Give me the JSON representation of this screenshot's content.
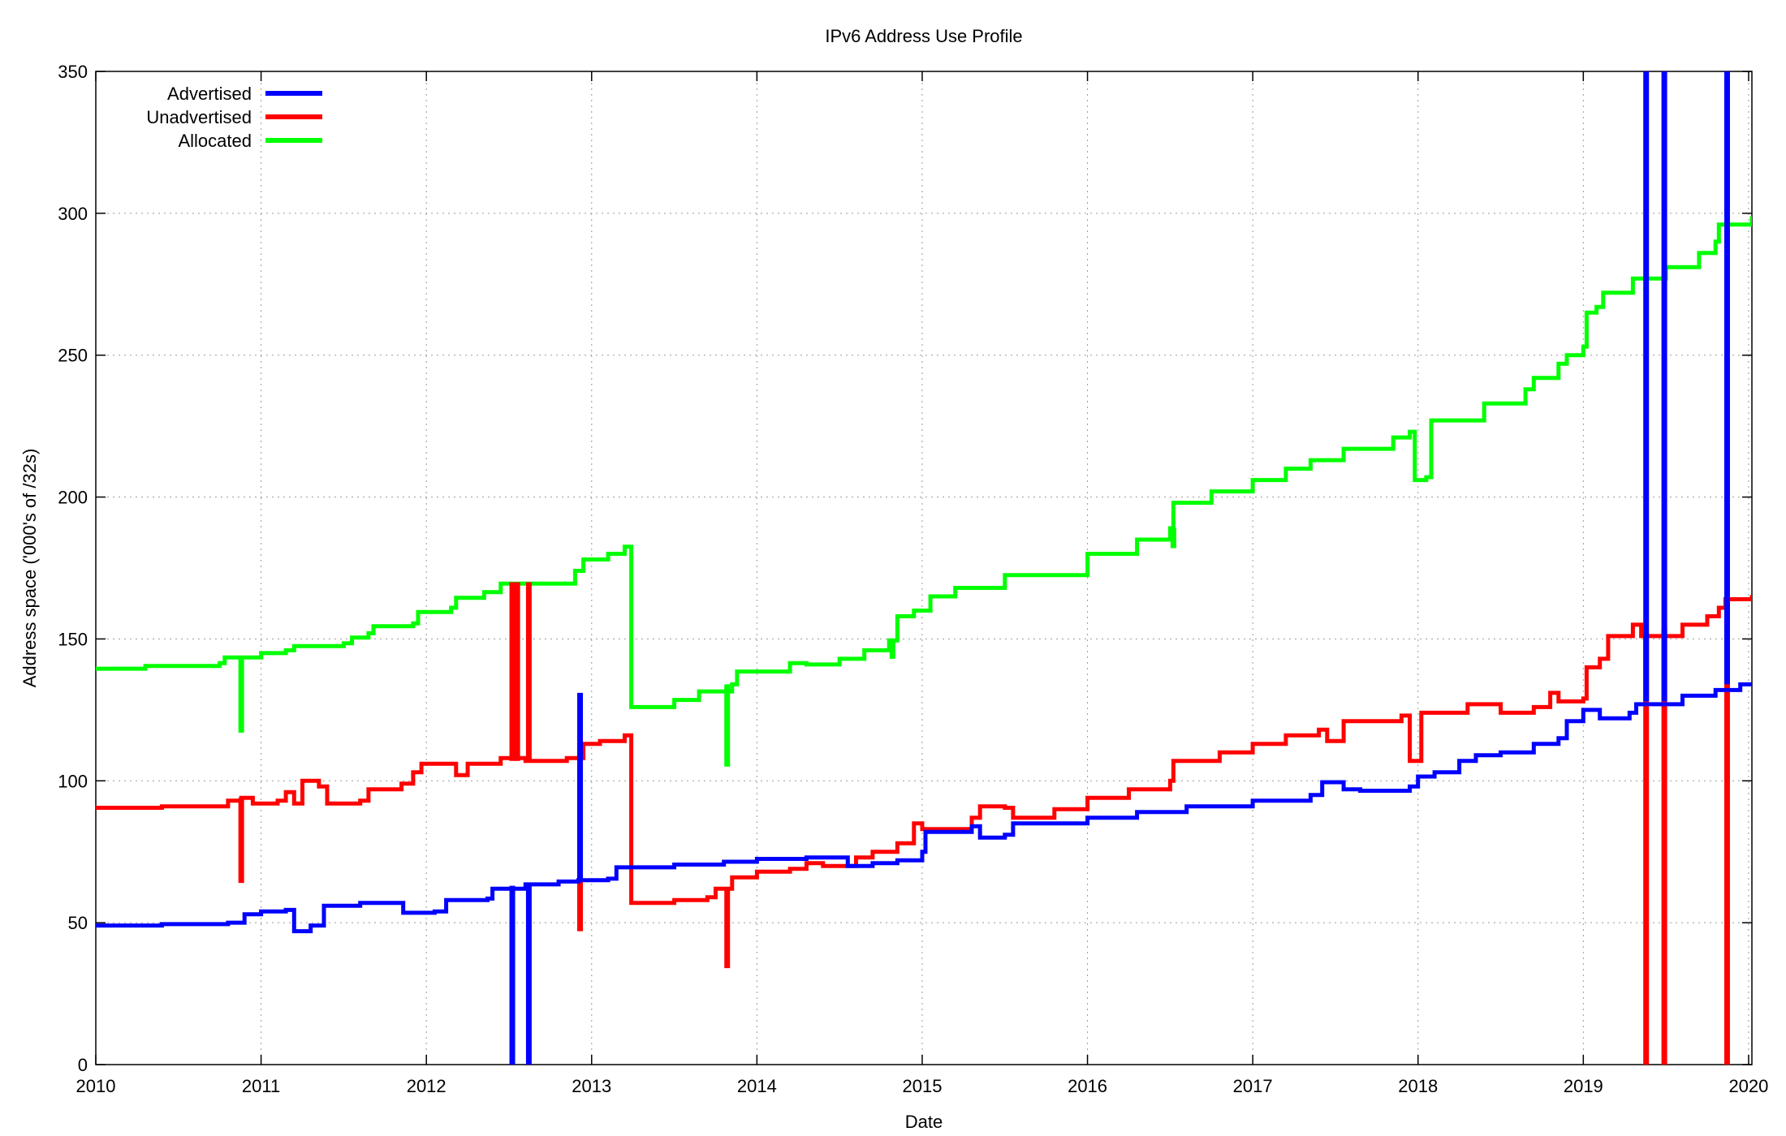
{
  "chart_data": {
    "type": "line",
    "title": "IPv6 Address Use Profile",
    "xlabel": "Date",
    "ylabel": "Address space ('000's of /32s)",
    "xlim": [
      2010,
      2020.02
    ],
    "ylim": [
      0,
      350
    ],
    "x_ticks": [
      "2010",
      "2011",
      "2012",
      "2013",
      "2014",
      "2015",
      "2016",
      "2017",
      "2018",
      "2019",
      "2020"
    ],
    "y_ticks": [
      "0",
      "50",
      "100",
      "150",
      "200",
      "250",
      "300",
      "350"
    ],
    "grid": true,
    "legend_position": "top-left",
    "series": [
      {
        "name": "Advertised",
        "color": "#0000ff",
        "points": [
          [
            2010.0,
            49
          ],
          [
            2010.4,
            49.5
          ],
          [
            2010.8,
            50
          ],
          [
            2010.9,
            53
          ],
          [
            2011.0,
            54
          ],
          [
            2011.15,
            54.5
          ],
          [
            2011.2,
            47
          ],
          [
            2011.3,
            49
          ],
          [
            2011.38,
            56
          ],
          [
            2011.6,
            57
          ],
          [
            2011.82,
            57
          ],
          [
            2011.86,
            53.5
          ],
          [
            2012.05,
            54
          ],
          [
            2012.12,
            58
          ],
          [
            2012.37,
            58.5
          ],
          [
            2012.4,
            62
          ],
          [
            2012.6,
            63.5
          ],
          [
            2012.8,
            64.5
          ],
          [
            2012.92,
            65
          ],
          [
            2013.1,
            65.5
          ],
          [
            2013.15,
            69.5
          ],
          [
            2013.5,
            70.5
          ],
          [
            2013.8,
            71.5
          ],
          [
            2014.0,
            72.5
          ],
          [
            2014.3,
            73
          ],
          [
            2014.45,
            73
          ],
          [
            2014.55,
            70
          ],
          [
            2014.7,
            71
          ],
          [
            2014.85,
            72
          ],
          [
            2015.0,
            75
          ],
          [
            2015.02,
            82
          ],
          [
            2015.3,
            84
          ],
          [
            2015.35,
            80
          ],
          [
            2015.5,
            81
          ],
          [
            2015.55,
            85
          ],
          [
            2016.0,
            87
          ],
          [
            2016.3,
            89
          ],
          [
            2016.6,
            91
          ],
          [
            2017.0,
            93
          ],
          [
            2017.35,
            95
          ],
          [
            2017.42,
            99.5
          ],
          [
            2017.55,
            97
          ],
          [
            2017.65,
            96.5
          ],
          [
            2017.95,
            98
          ],
          [
            2018.0,
            101.5
          ],
          [
            2018.1,
            103
          ],
          [
            2018.25,
            107
          ],
          [
            2018.35,
            109
          ],
          [
            2018.5,
            110
          ],
          [
            2018.7,
            113
          ],
          [
            2018.85,
            115
          ],
          [
            2018.9,
            121
          ],
          [
            2019.0,
            125
          ],
          [
            2019.1,
            122
          ],
          [
            2019.28,
            124
          ],
          [
            2019.32,
            127
          ],
          [
            2019.6,
            130
          ],
          [
            2019.8,
            132
          ],
          [
            2019.95,
            134
          ],
          [
            2020.02,
            134
          ]
        ]
      },
      {
        "name": "Unadvertised",
        "color": "#ff0000",
        "points": [
          [
            2010.0,
            90.5
          ],
          [
            2010.4,
            91
          ],
          [
            2010.8,
            93
          ],
          [
            2010.88,
            94
          ],
          [
            2010.95,
            92
          ],
          [
            2011.1,
            93
          ],
          [
            2011.15,
            96
          ],
          [
            2011.2,
            92
          ],
          [
            2011.25,
            100
          ],
          [
            2011.35,
            98
          ],
          [
            2011.4,
            92
          ],
          [
            2011.6,
            93
          ],
          [
            2011.65,
            97
          ],
          [
            2011.85,
            99
          ],
          [
            2011.92,
            103
          ],
          [
            2011.97,
            106
          ],
          [
            2012.15,
            106
          ],
          [
            2012.18,
            102
          ],
          [
            2012.25,
            106
          ],
          [
            2012.45,
            108
          ],
          [
            2012.6,
            107
          ],
          [
            2012.85,
            108
          ],
          [
            2012.95,
            113
          ],
          [
            2013.05,
            114
          ],
          [
            2013.15,
            114
          ],
          [
            2013.2,
            116
          ],
          [
            2013.24,
            57
          ],
          [
            2013.5,
            58
          ],
          [
            2013.7,
            59
          ],
          [
            2013.75,
            62
          ],
          [
            2013.85,
            66
          ],
          [
            2014.0,
            68
          ],
          [
            2014.2,
            69
          ],
          [
            2014.3,
            71
          ],
          [
            2014.4,
            70
          ],
          [
            2014.6,
            73
          ],
          [
            2014.7,
            75
          ],
          [
            2014.85,
            78
          ],
          [
            2014.95,
            85
          ],
          [
            2015.0,
            83
          ],
          [
            2015.3,
            87
          ],
          [
            2015.35,
            91
          ],
          [
            2015.5,
            90.5
          ],
          [
            2015.55,
            87
          ],
          [
            2015.8,
            90
          ],
          [
            2016.0,
            94
          ],
          [
            2016.25,
            97
          ],
          [
            2016.5,
            100
          ],
          [
            2016.52,
            107
          ],
          [
            2016.8,
            110
          ],
          [
            2017.0,
            113
          ],
          [
            2017.2,
            116
          ],
          [
            2017.4,
            118
          ],
          [
            2017.45,
            114
          ],
          [
            2017.55,
            121
          ],
          [
            2017.9,
            123
          ],
          [
            2017.95,
            107
          ],
          [
            2018.0,
            107
          ],
          [
            2018.02,
            124
          ],
          [
            2018.2,
            124
          ],
          [
            2018.3,
            127
          ],
          [
            2018.5,
            124
          ],
          [
            2018.7,
            126
          ],
          [
            2018.8,
            131
          ],
          [
            2018.85,
            128
          ],
          [
            2019.0,
            129
          ],
          [
            2019.02,
            140
          ],
          [
            2019.1,
            143
          ],
          [
            2019.15,
            151
          ],
          [
            2019.3,
            155
          ],
          [
            2019.35,
            151
          ],
          [
            2019.6,
            155
          ],
          [
            2019.75,
            158
          ],
          [
            2019.82,
            161
          ],
          [
            2019.86,
            164
          ],
          [
            2020.02,
            165.5
          ]
        ]
      },
      {
        "name": "Allocated",
        "color": "#00ff00",
        "points": [
          [
            2010.0,
            139.5
          ],
          [
            2010.3,
            140.5
          ],
          [
            2010.75,
            141.5
          ],
          [
            2010.78,
            143.5
          ],
          [
            2011.0,
            145
          ],
          [
            2011.15,
            146
          ],
          [
            2011.2,
            147.5
          ],
          [
            2011.5,
            148.5
          ],
          [
            2011.55,
            150.5
          ],
          [
            2011.65,
            152
          ],
          [
            2011.68,
            154.5
          ],
          [
            2011.92,
            155.5
          ],
          [
            2011.95,
            159.5
          ],
          [
            2012.15,
            161
          ],
          [
            2012.18,
            164.5
          ],
          [
            2012.35,
            166.5
          ],
          [
            2012.45,
            169.5
          ],
          [
            2012.9,
            174
          ],
          [
            2012.95,
            178
          ],
          [
            2013.1,
            180
          ],
          [
            2013.2,
            182.5
          ],
          [
            2013.24,
            126
          ],
          [
            2013.5,
            128.5
          ],
          [
            2013.65,
            131.5
          ],
          [
            2013.85,
            134
          ],
          [
            2013.88,
            138.5
          ],
          [
            2014.2,
            141.5
          ],
          [
            2014.3,
            141
          ],
          [
            2014.5,
            143
          ],
          [
            2014.65,
            146
          ],
          [
            2014.8,
            149.5
          ],
          [
            2014.85,
            158
          ],
          [
            2014.95,
            160
          ],
          [
            2015.05,
            165
          ],
          [
            2015.2,
            168
          ],
          [
            2015.5,
            172.5
          ],
          [
            2016.0,
            180
          ],
          [
            2016.3,
            185
          ],
          [
            2016.5,
            189
          ],
          [
            2016.52,
            198
          ],
          [
            2016.75,
            202
          ],
          [
            2017.0,
            206
          ],
          [
            2017.2,
            210
          ],
          [
            2017.35,
            213
          ],
          [
            2017.55,
            217
          ],
          [
            2017.85,
            221
          ],
          [
            2017.95,
            223
          ],
          [
            2017.98,
            206
          ],
          [
            2018.05,
            207
          ],
          [
            2018.08,
            227
          ],
          [
            2018.4,
            233
          ],
          [
            2018.65,
            238
          ],
          [
            2018.7,
            242
          ],
          [
            2018.85,
            247
          ],
          [
            2018.9,
            250
          ],
          [
            2019.0,
            253
          ],
          [
            2019.02,
            265
          ],
          [
            2019.08,
            267
          ],
          [
            2019.12,
            272
          ],
          [
            2019.3,
            277
          ],
          [
            2019.5,
            281
          ],
          [
            2019.7,
            286
          ],
          [
            2019.8,
            290
          ],
          [
            2019.82,
            296
          ],
          [
            2020.02,
            299
          ]
        ]
      }
    ],
    "spikes": [
      {
        "series": "Advertised",
        "x": 2012.52,
        "from": 63,
        "to": 0
      },
      {
        "series": "Advertised",
        "x": 2012.62,
        "from": 63,
        "to": 0
      },
      {
        "series": "Advertised",
        "x": 2012.93,
        "from": 65,
        "to": 131
      },
      {
        "series": "Advertised",
        "x": 2019.38,
        "from": 128,
        "to": 350
      },
      {
        "series": "Advertised",
        "x": 2019.49,
        "from": 128,
        "to": 350
      },
      {
        "series": "Advertised",
        "x": 2019.87,
        "from": 134,
        "to": 350
      },
      {
        "series": "Unadvertised",
        "x": 2010.88,
        "from": 94,
        "to": 64
      },
      {
        "series": "Unadvertised",
        "x": 2012.52,
        "from": 107,
        "to": 170
      },
      {
        "series": "Unadvertised",
        "x": 2012.55,
        "from": 107,
        "to": 170
      },
      {
        "series": "Unadvertised",
        "x": 2012.62,
        "from": 107,
        "to": 170
      },
      {
        "series": "Unadvertised",
        "x": 2012.93,
        "from": 113,
        "to": 47
      },
      {
        "series": "Unadvertised",
        "x": 2013.82,
        "from": 62,
        "to": 34
      },
      {
        "series": "Unadvertised",
        "x": 2019.38,
        "from": 152,
        "to": 0
      },
      {
        "series": "Unadvertised",
        "x": 2019.49,
        "from": 154,
        "to": 0
      },
      {
        "series": "Unadvertised",
        "x": 2019.87,
        "from": 164,
        "to": 0
      },
      {
        "series": "Allocated",
        "x": 2010.88,
        "from": 144,
        "to": 117
      },
      {
        "series": "Allocated",
        "x": 2013.82,
        "from": 134,
        "to": 105
      },
      {
        "series": "Allocated",
        "x": 2014.82,
        "from": 149,
        "to": 143
      },
      {
        "series": "Allocated",
        "x": 2016.52,
        "from": 189,
        "to": 182
      }
    ]
  }
}
